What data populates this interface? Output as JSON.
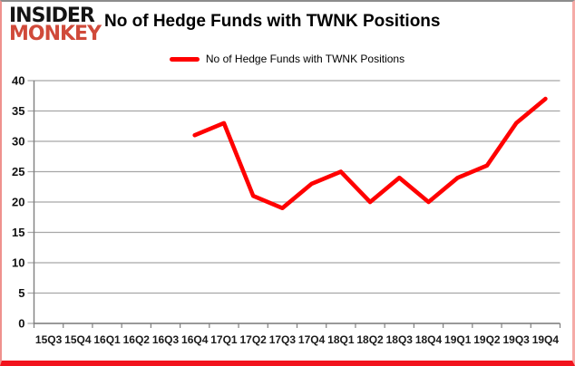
{
  "logo": {
    "line1": "INSIDER",
    "line2": "MONKEY"
  },
  "header": {
    "title": "No of Hedge Funds with TWNK Positions"
  },
  "legend": {
    "label": "No of Hedge Funds with TWNK Positions",
    "line_color": "#ff0000"
  },
  "colors": {
    "series_red": "#ff0000",
    "logo_red": "#d04a3a",
    "border_bottom_red": "#f2131d",
    "border_pink": "#f5aba7",
    "gridline_gray": "#a6a6a6",
    "axis_gray": "#7f7f7f"
  },
  "chart_data": {
    "type": "line",
    "title": "No of Hedge Funds with TWNK Positions",
    "categories": [
      "15Q3",
      "15Q4",
      "16Q1",
      "16Q2",
      "16Q3",
      "16Q4",
      "17Q1",
      "17Q2",
      "17Q3",
      "17Q4",
      "18Q1",
      "18Q2",
      "18Q3",
      "18Q4",
      "19Q1",
      "19Q2",
      "19Q3",
      "19Q4"
    ],
    "series": [
      {
        "name": "No of Hedge Funds with TWNK Positions",
        "color": "#ff0000",
        "values": [
          null,
          null,
          null,
          null,
          null,
          31,
          33,
          21,
          19,
          23,
          25,
          20,
          24,
          20,
          24,
          26,
          33,
          37
        ]
      }
    ],
    "xlabel": "",
    "ylabel": "",
    "ylim": [
      0,
      40
    ],
    "ytick_step": 5,
    "yticks": [
      0,
      5,
      10,
      15,
      20,
      25,
      30,
      35,
      40
    ],
    "grid": true,
    "legend_position": "top"
  }
}
